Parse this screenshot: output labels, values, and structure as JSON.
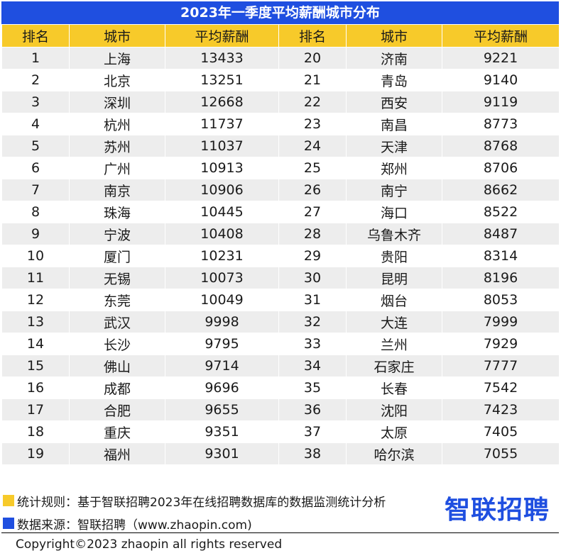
{
  "title": "2023年一季度平均薪酬城市分布",
  "colors": {
    "title_bg": "#1f4fe0",
    "header_bg": "#f7ca2a",
    "stripe": "#ededed",
    "rule_marker": "#f7ca2a",
    "source_marker": "#1f4fe0"
  },
  "headers": [
    "排名",
    "城市",
    "平均薪酬",
    "排名",
    "城市",
    "平均薪酬"
  ],
  "rows": [
    [
      "1",
      "上海",
      "13433",
      "20",
      "济南",
      "9221"
    ],
    [
      "2",
      "北京",
      "13251",
      "21",
      "青岛",
      "9140"
    ],
    [
      "3",
      "深圳",
      "12668",
      "22",
      "西安",
      "9119"
    ],
    [
      "4",
      "杭州",
      "11737",
      "23",
      "南昌",
      "8773"
    ],
    [
      "5",
      "苏州",
      "11037",
      "24",
      "天津",
      "8768"
    ],
    [
      "6",
      "广州",
      "10913",
      "25",
      "郑州",
      "8706"
    ],
    [
      "7",
      "南京",
      "10906",
      "26",
      "南宁",
      "8662"
    ],
    [
      "8",
      "珠海",
      "10445",
      "27",
      "海口",
      "8522"
    ],
    [
      "9",
      "宁波",
      "10408",
      "28",
      "乌鲁木齐",
      "8487"
    ],
    [
      "10",
      "厦门",
      "10231",
      "29",
      "贵阳",
      "8314"
    ],
    [
      "11",
      "无锡",
      "10073",
      "30",
      "昆明",
      "8196"
    ],
    [
      "12",
      "东莞",
      "10049",
      "31",
      "烟台",
      "8053"
    ],
    [
      "13",
      "武汉",
      "9998",
      "32",
      "大连",
      "7999"
    ],
    [
      "14",
      "长沙",
      "9795",
      "33",
      "兰州",
      "7929"
    ],
    [
      "15",
      "佛山",
      "9714",
      "34",
      "石家庄",
      "7777"
    ],
    [
      "16",
      "成都",
      "9696",
      "35",
      "长春",
      "7542"
    ],
    [
      "17",
      "合肥",
      "9655",
      "36",
      "沈阳",
      "7423"
    ],
    [
      "18",
      "重庆",
      "9351",
      "37",
      "太原",
      "7405"
    ],
    [
      "19",
      "福州",
      "9301",
      "38",
      "哈尔滨",
      "7055"
    ]
  ],
  "notes": {
    "rule": "统计规则：基于智联招聘2023年在线招聘数据库的数据监测统计分析",
    "source": "数据来源：智联招聘（www.zhaopin.com)"
  },
  "brand": "智联招聘",
  "copyright": "Copyright©2023 zhaopin all rights reserved"
}
